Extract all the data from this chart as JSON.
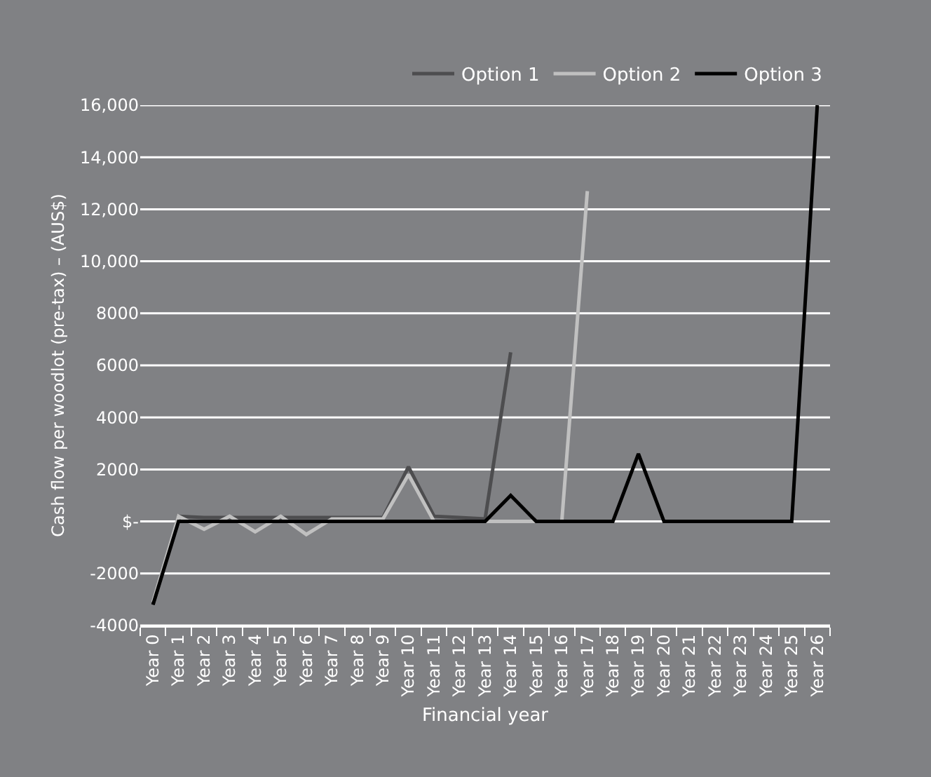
{
  "chart_data": {
    "type": "line",
    "xlabel": "Financial year",
    "ylabel": "Cash flow per woodlot (pre-tax) – (AUS$)",
    "categories": [
      "Year 0",
      "Year 1",
      "Year 2",
      "Year 3",
      "Year 4",
      "Year 5",
      "Year 6",
      "Year 7",
      "Year 8",
      "Year 9",
      "Year 10",
      "Year 11",
      "Year 12",
      "Year 13",
      "Year 14",
      "Year 15",
      "Year 16",
      "Year 17",
      "Year 18",
      "Year 19",
      "Year 20",
      "Year 21",
      "Year 22",
      "Year 23",
      "Year 24",
      "Year 25",
      "Year 26"
    ],
    "series": [
      {
        "name": "Option 1",
        "color": "#4d4d4f",
        "values": [
          -3200,
          200,
          150,
          150,
          150,
          150,
          150,
          150,
          150,
          150,
          2100,
          200,
          150,
          100,
          6500,
          null,
          null,
          null,
          null,
          null,
          null,
          null,
          null,
          null,
          null,
          null,
          null
        ]
      },
      {
        "name": "Option 2",
        "color": "#c0c0c0",
        "values": [
          -3100,
          200,
          -300,
          200,
          -400,
          200,
          -500,
          100,
          100,
          100,
          1800,
          0,
          0,
          0,
          0,
          0,
          0,
          12700,
          null,
          null,
          null,
          null,
          null,
          null,
          null,
          null,
          null
        ]
      },
      {
        "name": "Option 3",
        "color": "#000000",
        "values": [
          -3200,
          0,
          0,
          0,
          0,
          0,
          0,
          0,
          0,
          0,
          0,
          0,
          0,
          0,
          1000,
          0,
          0,
          0,
          0,
          2600,
          0,
          0,
          0,
          0,
          0,
          0,
          16000
        ]
      }
    ],
    "ylim": [
      -4000,
      16000
    ],
    "yticks": [
      -4000,
      -2000,
      {
        "value": 0,
        "label": "$-"
      },
      2000,
      4000,
      6000,
      8000,
      {
        "value": 10000,
        "label": "10,000"
      },
      {
        "value": 12000,
        "label": "12,000"
      },
      {
        "value": 14000,
        "label": "14,000"
      },
      {
        "value": 16000,
        "label": "16,000"
      }
    ],
    "grid": "y",
    "legend": "top right",
    "marker": "none",
    "line_style": "solid"
  }
}
